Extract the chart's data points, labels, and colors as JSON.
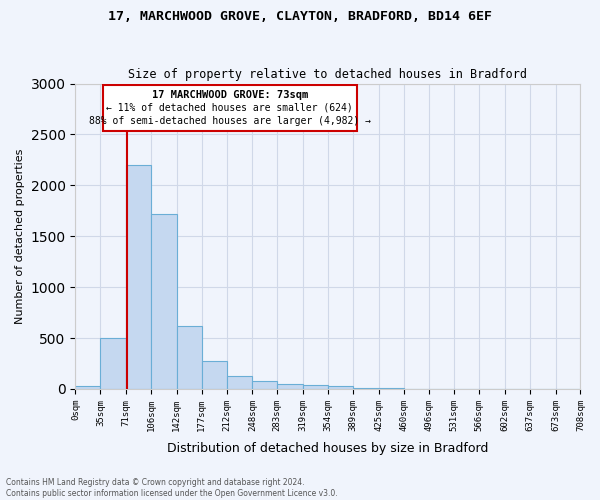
{
  "title1": "17, MARCHWOOD GROVE, CLAYTON, BRADFORD, BD14 6EF",
  "title2": "Size of property relative to detached houses in Bradford",
  "xlabel": "Distribution of detached houses by size in Bradford",
  "ylabel": "Number of detached properties",
  "footnote1": "Contains HM Land Registry data © Crown copyright and database right 2024.",
  "footnote2": "Contains public sector information licensed under the Open Government Licence v3.0.",
  "bin_edges": [
    0,
    35,
    71,
    106,
    142,
    177,
    212,
    248,
    283,
    319,
    354,
    389,
    425,
    460,
    496,
    531,
    566,
    602,
    637,
    673,
    708
  ],
  "bin_labels": [
    "0sqm",
    "35sqm",
    "71sqm",
    "106sqm",
    "142sqm",
    "177sqm",
    "212sqm",
    "248sqm",
    "283sqm",
    "319sqm",
    "354sqm",
    "389sqm",
    "425sqm",
    "460sqm",
    "496sqm",
    "531sqm",
    "566sqm",
    "602sqm",
    "637sqm",
    "673sqm",
    "708sqm"
  ],
  "bar_values": [
    30,
    500,
    2200,
    1720,
    620,
    270,
    130,
    75,
    50,
    40,
    30,
    10,
    5,
    4,
    3,
    2,
    2,
    1,
    1,
    1
  ],
  "bar_color": "#c5d8f0",
  "bar_edgecolor": "#6aaed6",
  "property_line_x": 73,
  "property_line_label": "17 MARCHWOOD GROVE: 73sqm",
  "annotation_line1": "← 11% of detached houses are smaller (624)",
  "annotation_line2": "88% of semi-detached houses are larger (4,982) →",
  "ylim": [
    0,
    3000
  ],
  "yticks": [
    0,
    500,
    1000,
    1500,
    2000,
    2500,
    3000
  ],
  "background_color": "#f0f4fc",
  "axes_background": "#f0f4fc",
  "red_line_color": "#cc0000",
  "box_edgecolor": "#cc0000"
}
